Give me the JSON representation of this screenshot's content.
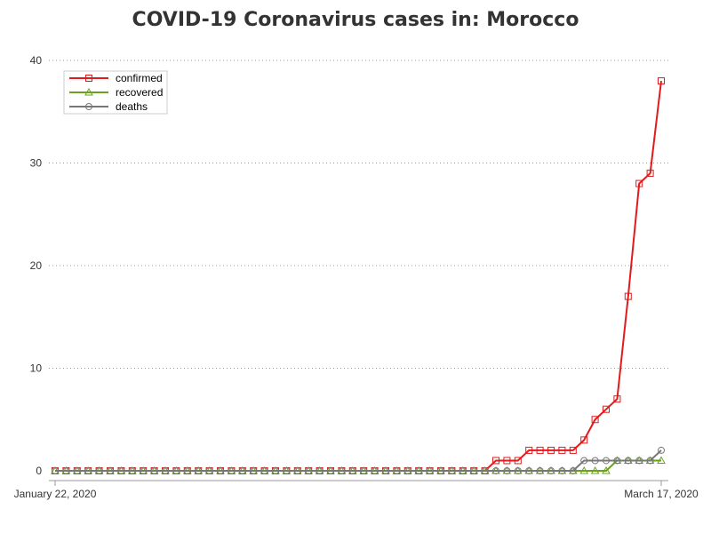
{
  "chart_data": {
    "type": "line",
    "title": "COVID-19 Coronavirus cases in: Morocco",
    "xlabel": "",
    "ylabel": "",
    "x_tick_labels": [
      "January 22, 2020",
      "March 17, 2020"
    ],
    "x_start": "2020-01-22",
    "x_end": "2020-03-17",
    "ylim": [
      0,
      40
    ],
    "y_ticks": [
      0,
      10,
      20,
      30,
      40
    ],
    "grid": "horizontal dotted",
    "legend_position": "top-left",
    "x": [
      "2020-01-22",
      "2020-01-23",
      "2020-01-24",
      "2020-01-25",
      "2020-01-26",
      "2020-01-27",
      "2020-01-28",
      "2020-01-29",
      "2020-01-30",
      "2020-01-31",
      "2020-02-01",
      "2020-02-02",
      "2020-02-03",
      "2020-02-04",
      "2020-02-05",
      "2020-02-06",
      "2020-02-07",
      "2020-02-08",
      "2020-02-09",
      "2020-02-10",
      "2020-02-11",
      "2020-02-12",
      "2020-02-13",
      "2020-02-14",
      "2020-02-15",
      "2020-02-16",
      "2020-02-17",
      "2020-02-18",
      "2020-02-19",
      "2020-02-20",
      "2020-02-21",
      "2020-02-22",
      "2020-02-23",
      "2020-02-24",
      "2020-02-25",
      "2020-02-26",
      "2020-02-27",
      "2020-02-28",
      "2020-02-29",
      "2020-03-01",
      "2020-03-02",
      "2020-03-03",
      "2020-03-04",
      "2020-03-05",
      "2020-03-06",
      "2020-03-07",
      "2020-03-08",
      "2020-03-09",
      "2020-03-10",
      "2020-03-11",
      "2020-03-12",
      "2020-03-13",
      "2020-03-14",
      "2020-03-15",
      "2020-03-16",
      "2020-03-17"
    ],
    "series": [
      {
        "name": "confirmed",
        "color": "#e31a1c",
        "marker": "square",
        "values": [
          0,
          0,
          0,
          0,
          0,
          0,
          0,
          0,
          0,
          0,
          0,
          0,
          0,
          0,
          0,
          0,
          0,
          0,
          0,
          0,
          0,
          0,
          0,
          0,
          0,
          0,
          0,
          0,
          0,
          0,
          0,
          0,
          0,
          0,
          0,
          0,
          0,
          0,
          0,
          0,
          1,
          1,
          1,
          2,
          2,
          2,
          2,
          2,
          3,
          5,
          6,
          7,
          17,
          28,
          29,
          38
        ]
      },
      {
        "name": "recovered",
        "color": "#6aa121",
        "marker": "triangle",
        "values": [
          0,
          0,
          0,
          0,
          0,
          0,
          0,
          0,
          0,
          0,
          0,
          0,
          0,
          0,
          0,
          0,
          0,
          0,
          0,
          0,
          0,
          0,
          0,
          0,
          0,
          0,
          0,
          0,
          0,
          0,
          0,
          0,
          0,
          0,
          0,
          0,
          0,
          0,
          0,
          0,
          0,
          0,
          0,
          0,
          0,
          0,
          0,
          0,
          0,
          0,
          0,
          1,
          1,
          1,
          1,
          1
        ]
      },
      {
        "name": "deaths",
        "color": "#777777",
        "marker": "circle",
        "values": [
          0,
          0,
          0,
          0,
          0,
          0,
          0,
          0,
          0,
          0,
          0,
          0,
          0,
          0,
          0,
          0,
          0,
          0,
          0,
          0,
          0,
          0,
          0,
          0,
          0,
          0,
          0,
          0,
          0,
          0,
          0,
          0,
          0,
          0,
          0,
          0,
          0,
          0,
          0,
          0,
          0,
          0,
          0,
          0,
          0,
          0,
          0,
          0,
          1,
          1,
          1,
          1,
          1,
          1,
          1,
          2
        ]
      }
    ]
  }
}
